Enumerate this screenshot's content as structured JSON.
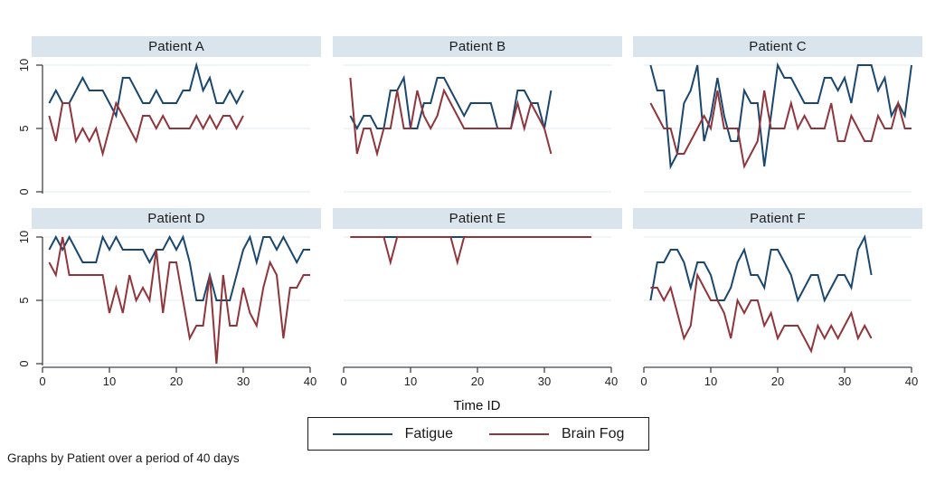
{
  "figure": {
    "caption": "Graphs by Patient over a period of 40 days",
    "x_axis_label": "Time ID",
    "x_ticks": [
      0,
      10,
      20,
      30,
      40
    ],
    "y_ticks": [
      0,
      5,
      10
    ],
    "xlim": [
      0,
      40
    ],
    "ylim": [
      0,
      10
    ],
    "grid": true,
    "colors": {
      "fatigue": "#1a476f",
      "brain_fog": "#90353b",
      "strip_background": "#d9e4ed",
      "gridline": "#e2ecf2",
      "axis": "#444444"
    },
    "legend": {
      "position": "bottom-center",
      "items": [
        {
          "label": "Fatigue",
          "color": "#1a476f"
        },
        {
          "label": "Brain Fog",
          "color": "#90353b"
        }
      ]
    }
  },
  "chart_data": [
    {
      "type": "line",
      "title": "Patient A",
      "x_start": 1,
      "xlim": [
        0,
        40
      ],
      "ylim": [
        0,
        10
      ],
      "series": [
        {
          "name": "Fatigue",
          "color": "#1a476f",
          "values": [
            7,
            8,
            7,
            7,
            8,
            9,
            8,
            8,
            8,
            7,
            6,
            9,
            9,
            8,
            7,
            7,
            8,
            7,
            7,
            7,
            8,
            8,
            10,
            8,
            9,
            7,
            7,
            8,
            7,
            8
          ]
        },
        {
          "name": "Brain Fog",
          "color": "#90353b",
          "values": [
            6,
            4,
            7,
            7,
            4,
            5,
            4,
            5,
            3,
            5,
            7,
            6,
            5,
            4,
            6,
            6,
            5,
            6,
            5,
            5,
            5,
            5,
            6,
            5,
            6,
            5,
            6,
            6,
            5,
            6
          ]
        }
      ]
    },
    {
      "type": "line",
      "title": "Patient B",
      "x_start": 1,
      "xlim": [
        0,
        40
      ],
      "ylim": [
        0,
        10
      ],
      "series": [
        {
          "name": "Fatigue",
          "color": "#1a476f",
          "values": [
            6,
            5,
            6,
            6,
            5,
            5,
            8,
            8,
            9,
            5,
            5,
            7,
            7,
            9,
            9,
            8,
            7,
            6,
            7,
            7,
            7,
            7,
            5,
            5,
            5,
            8,
            8,
            7,
            7,
            5,
            8
          ]
        },
        {
          "name": "Brain Fog",
          "color": "#90353b",
          "values": [
            9,
            3,
            5,
            5,
            3,
            5,
            5,
            8,
            5,
            5,
            8,
            6,
            5,
            6,
            8,
            7,
            6,
            5,
            5,
            5,
            5,
            5,
            5,
            5,
            5,
            7,
            5,
            7,
            6,
            5,
            3
          ]
        }
      ]
    },
    {
      "type": "line",
      "title": "Patient C",
      "x_start": 1,
      "xlim": [
        0,
        40
      ],
      "ylim": [
        0,
        10
      ],
      "series": [
        {
          "name": "Fatigue",
          "color": "#1a476f",
          "values": [
            10,
            8,
            8,
            2,
            3,
            7,
            8,
            10,
            4,
            6,
            9,
            6,
            4,
            4,
            8,
            7,
            7,
            2,
            6,
            10,
            9,
            9,
            8,
            7,
            7,
            7,
            9,
            9,
            8,
            9,
            7,
            10,
            10,
            10,
            8,
            9,
            6,
            7,
            6,
            10
          ]
        },
        {
          "name": "Brain Fog",
          "color": "#90353b",
          "values": [
            7,
            6,
            5,
            5,
            3,
            3,
            4,
            5,
            6,
            5,
            8,
            5,
            5,
            5,
            2,
            3,
            4,
            8,
            5,
            5,
            5,
            7,
            5,
            6,
            5,
            5,
            5,
            7,
            4,
            4,
            6,
            5,
            4,
            4,
            6,
            5,
            5,
            7,
            5,
            5
          ]
        }
      ]
    },
    {
      "type": "line",
      "title": "Patient D",
      "x_start": 1,
      "xlim": [
        0,
        40
      ],
      "ylim": [
        0,
        10
      ],
      "series": [
        {
          "name": "Fatigue",
          "color": "#1a476f",
          "values": [
            9,
            10,
            9,
            10,
            9,
            8,
            8,
            8,
            10,
            9,
            10,
            9,
            9,
            9,
            9,
            8,
            9,
            9,
            10,
            9,
            10,
            8,
            5,
            5,
            7,
            5,
            5,
            5,
            7,
            9,
            10,
            8,
            10,
            10,
            9,
            10,
            9,
            8,
            9,
            9
          ]
        },
        {
          "name": "Brain Fog",
          "color": "#90353b",
          "values": [
            8,
            7,
            10,
            7,
            7,
            7,
            7,
            7,
            7,
            4,
            6,
            4,
            7,
            5,
            6,
            5,
            9,
            4,
            8,
            8,
            5,
            2,
            3,
            3,
            7,
            0,
            7,
            3,
            3,
            6,
            4,
            3,
            6,
            8,
            7,
            2,
            6,
            6,
            7,
            7
          ]
        }
      ]
    },
    {
      "type": "line",
      "title": "Patient E",
      "x_start": 1,
      "xlim": [
        0,
        40
      ],
      "ylim": [
        0,
        10
      ],
      "series": [
        {
          "name": "Fatigue",
          "color": "#1a476f",
          "values": [
            10,
            10,
            10,
            10,
            10,
            10,
            10,
            10,
            10,
            10,
            10,
            10,
            10,
            10,
            10,
            10,
            10,
            10,
            10,
            10,
            10,
            10,
            10,
            10,
            10,
            10,
            10,
            10,
            10,
            10,
            10,
            10,
            10,
            10,
            10,
            10,
            10
          ]
        },
        {
          "name": "Brain Fog",
          "color": "#90353b",
          "values": [
            10,
            10,
            10,
            10,
            10,
            10,
            8,
            10,
            10,
            10,
            10,
            10,
            10,
            10,
            10,
            10,
            8,
            10,
            10,
            10,
            10,
            10,
            10,
            10,
            10,
            10,
            10,
            10,
            10,
            10,
            10,
            10,
            10,
            10,
            10,
            10,
            10
          ]
        }
      ]
    },
    {
      "type": "line",
      "title": "Patient F",
      "x_start": 1,
      "xlim": [
        0,
        40
      ],
      "ylim": [
        0,
        10
      ],
      "series": [
        {
          "name": "Fatigue",
          "color": "#1a476f",
          "values": [
            5,
            8,
            8,
            9,
            9,
            8,
            6,
            8,
            8,
            7,
            5,
            5,
            6,
            8,
            9,
            7,
            7,
            6,
            9,
            9,
            8,
            7,
            5,
            6,
            7,
            7,
            5,
            6,
            7,
            7,
            6,
            9,
            10,
            7
          ]
        },
        {
          "name": "Brain Fog",
          "color": "#90353b",
          "values": [
            6,
            6,
            5,
            6,
            4,
            2,
            3,
            7,
            6,
            5,
            5,
            4,
            2,
            5,
            4,
            5,
            5,
            3,
            4,
            2,
            3,
            3,
            3,
            2,
            1,
            3,
            2,
            3,
            2,
            3,
            4,
            2,
            3,
            2
          ]
        }
      ]
    }
  ]
}
